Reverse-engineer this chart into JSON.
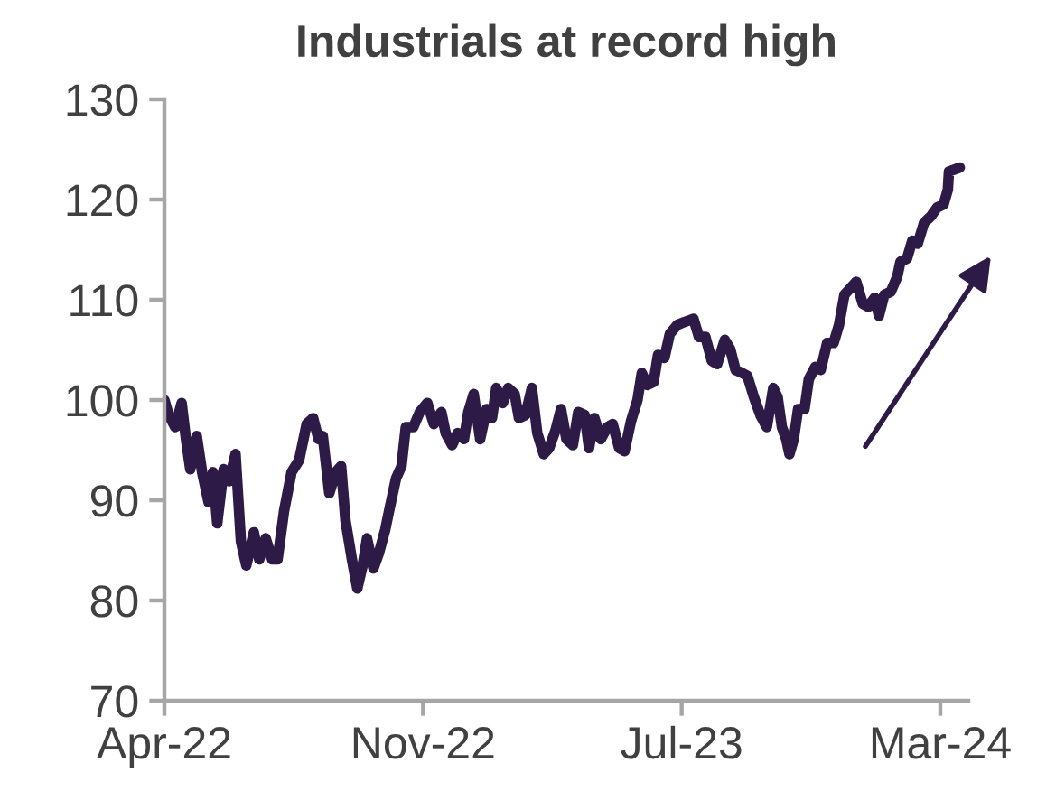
{
  "chart_data": {
    "type": "line",
    "title": "Industrials at record high",
    "x": [
      "2022-04-01",
      "2022-04-05",
      "2022-04-11",
      "2022-04-17",
      "2022-04-21",
      "2022-04-25",
      "2022-05-01",
      "2022-05-06",
      "2022-05-12",
      "2022-05-16",
      "2022-05-20",
      "2022-05-26",
      "2022-05-31",
      "2022-06-06",
      "2022-06-11",
      "2022-06-16",
      "2022-06-23",
      "2022-06-28",
      "2022-07-04",
      "2022-07-10",
      "2022-07-15",
      "2022-07-21",
      "2022-07-28",
      "2022-08-04",
      "2022-08-11",
      "2022-08-17",
      "2022-08-22",
      "2022-08-26",
      "2022-09-01",
      "2022-09-07",
      "2022-09-12",
      "2022-09-16",
      "2022-09-22",
      "2022-09-27",
      "2022-10-02",
      "2022-10-06",
      "2022-10-12",
      "2022-10-17",
      "2022-10-23",
      "2022-10-27",
      "2022-11-02",
      "2022-11-07",
      "2022-11-11",
      "2022-11-18",
      "2022-11-24",
      "2022-12-01",
      "2022-12-07",
      "2022-12-14",
      "2022-12-18",
      "2022-12-24",
      "2022-12-29",
      "2023-01-04",
      "2023-01-08",
      "2023-01-13",
      "2023-01-19",
      "2023-01-25",
      "2023-01-30",
      "2023-02-03",
      "2023-02-09",
      "2023-02-14",
      "2023-02-20",
      "2023-02-24",
      "2023-03-02",
      "2023-03-08",
      "2023-03-13",
      "2023-03-19",
      "2023-03-24",
      "2023-03-30",
      "2023-04-04",
      "2023-04-09",
      "2023-04-15",
      "2023-04-20",
      "2023-04-26",
      "2023-04-30",
      "2023-05-05",
      "2023-05-11",
      "2023-05-17",
      "2023-05-22",
      "2023-05-28",
      "2023-06-02",
      "2023-06-08",
      "2023-06-14",
      "2023-06-18",
      "2023-06-23",
      "2023-06-29",
      "2023-07-03",
      "2023-07-09",
      "2023-07-14",
      "2023-07-21",
      "2023-07-28",
      "2023-08-05",
      "2023-08-10",
      "2023-08-16",
      "2023-08-22",
      "2023-08-27",
      "2023-09-03",
      "2023-09-08",
      "2023-09-13",
      "2023-09-19",
      "2023-09-24",
      "2023-09-30",
      "2023-10-06",
      "2023-10-12",
      "2023-10-18",
      "2023-10-22",
      "2023-10-26",
      "2023-10-30",
      "2023-11-02",
      "2023-11-06",
      "2023-11-10",
      "2023-11-16",
      "2023-11-20",
      "2023-11-26",
      "2023-12-01",
      "2023-12-07",
      "2023-12-13",
      "2023-12-18",
      "2023-12-23",
      "2023-12-28",
      "2024-01-03",
      "2024-01-09",
      "2024-01-14",
      "2024-01-20",
      "2024-01-24",
      "2024-01-29",
      "2024-02-04",
      "2024-02-10",
      "2024-02-13",
      "2024-02-19",
      "2024-02-24",
      "2024-02-29",
      "2024-03-06",
      "2024-03-12",
      "2024-03-18",
      "2024-03-24",
      "2024-03-28",
      "2024-03-29",
      "2024-04-06",
      "2024-04-08"
    ],
    "series": [
      {
        "color": "#2e1a47",
        "values": [
          100,
          98.5,
          97.3,
          99.7,
          96.1,
          93.1,
          96.4,
          92.8,
          89.8,
          92.8,
          87.7,
          93.1,
          91.9,
          94.6,
          85.9,
          83.5,
          86.8,
          84.1,
          86.2,
          84.1,
          84.1,
          88.9,
          92.8,
          94.0,
          97.6,
          98.2,
          96.1,
          96.4,
          90.7,
          92.8,
          93.4,
          88.0,
          84.1,
          81.2,
          83.5,
          86.2,
          83.2,
          84.7,
          87.1,
          89.2,
          92.2,
          93.4,
          97.3,
          97.3,
          98.8,
          99.7,
          97.6,
          98.8,
          96.7,
          95.5,
          96.7,
          96.1,
          98.8,
          100.6,
          96.1,
          99.1,
          98.2,
          101.2,
          99.7,
          101.2,
          100.6,
          98.2,
          98.5,
          101.2,
          96.7,
          94.6,
          95.2,
          97.0,
          99.1,
          96.1,
          95.5,
          98.8,
          98.5,
          95.2,
          98.2,
          96.1,
          97.3,
          97.6,
          95.2,
          94.9,
          97.9,
          100,
          102.7,
          101.5,
          101.8,
          104.5,
          104.2,
          106.6,
          107.5,
          107.8,
          108.1,
          106.3,
          106.3,
          103.9,
          103.6,
          106.0,
          105.1,
          103.0,
          102.7,
          102.4,
          100.3,
          98.5,
          97.3,
          101.2,
          100.3,
          97.3,
          96.1,
          94.6,
          96.1,
          99.1,
          99.1,
          102.1,
          103.3,
          103.0,
          105.7,
          105.7,
          107.5,
          110.5,
          111.1,
          111.8,
          109.6,
          109.3,
          110.2,
          108.4,
          110.5,
          110.8,
          112.3,
          113.8,
          114.1,
          115.9,
          115.6,
          117.7,
          118.3,
          119.2,
          119.5,
          121.0,
          122.8,
          123.1,
          123.2
        ]
      }
    ],
    "xlim": [
      "2022-04-01",
      "2024-04-16"
    ],
    "xticks": [
      {
        "value": "2022-04-01",
        "label": "Apr-22"
      },
      {
        "value": "2022-11-27",
        "label": "Nov-22"
      },
      {
        "value": "2023-07-25",
        "label": "Jul-23"
      },
      {
        "value": "2024-03-21",
        "label": "Mar-24"
      }
    ],
    "ylim": [
      70,
      130
    ],
    "yticks": [
      70,
      80,
      90,
      100,
      110,
      120,
      130
    ],
    "line_style": "solid"
  }
}
